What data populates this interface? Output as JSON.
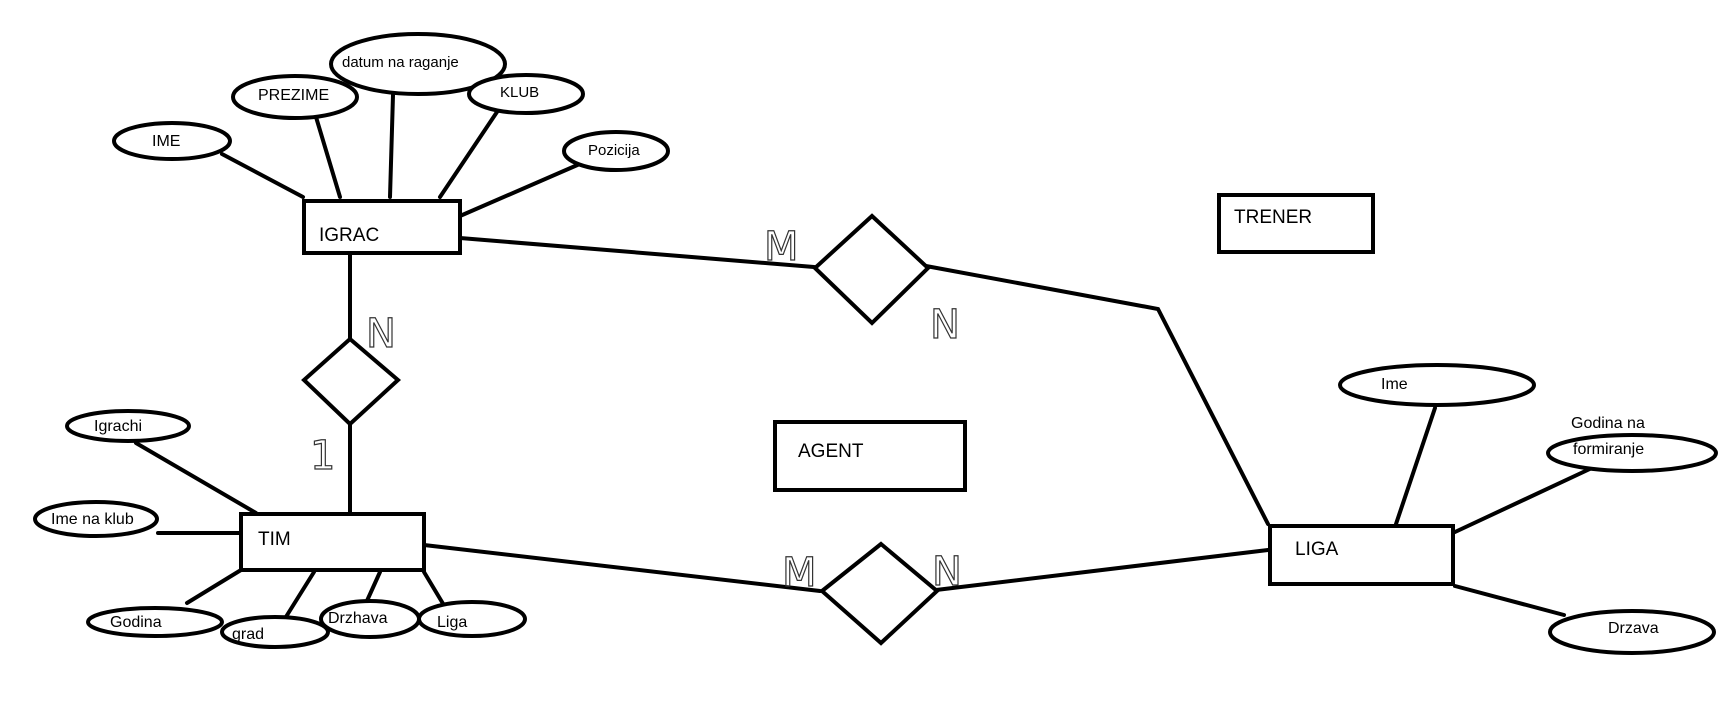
{
  "entities": {
    "igrac": "IGRAC",
    "tim": "TIM",
    "liga": "LIGA",
    "trener": "TRENER",
    "agent": "AGENT"
  },
  "igrac_attributes": {
    "ime": "IME",
    "prezime": "PREZIME",
    "datum": "datum na raganje",
    "klub": "KLUB",
    "pozicija": "Pozicija"
  },
  "tim_attributes": {
    "igrachi": "Igrachi",
    "ime_na_klub": "Ime na klub",
    "godina": "Godina",
    "grad": "grad",
    "drzhava": "Drzhava",
    "liga": "Liga"
  },
  "liga_attributes": {
    "ime": "Ime",
    "godina_line1": "Godina na",
    "godina_line2": "formiranje",
    "drzava": "Drzava"
  },
  "cardinalities": {
    "igrac_tim_top": "N",
    "igrac_tim_bottom": "1",
    "igrac_liga_left": "M",
    "igrac_liga_right": "N",
    "tim_liga_left": "M",
    "tim_liga_right": "N"
  }
}
